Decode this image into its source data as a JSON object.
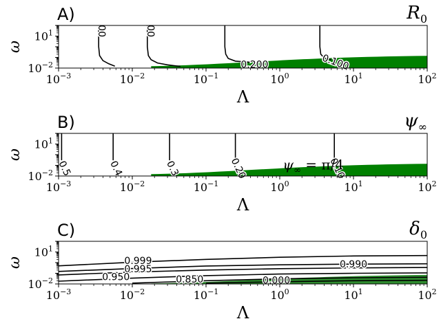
{
  "colors": {
    "fill": "#008000",
    "fill_alt": "#2e8b2e",
    "line": "#000000",
    "axes": "#000000"
  },
  "chart_data": [
    {
      "type": "contour",
      "panel_label": "A)",
      "title": "R",
      "title_sub": "0",
      "xlabel": "Λ",
      "ylabel": "ω",
      "xscale": "log",
      "yscale": "log",
      "xlim": [
        0.001,
        100
      ],
      "ylim": [
        0.01,
        100
      ],
      "x_ticks": [
        {
          "base": "10",
          "exp": "−3",
          "value": 0.001
        },
        {
          "base": "10",
          "exp": "−2",
          "value": 0.01
        },
        {
          "base": "10",
          "exp": "−1",
          "value": 0.1
        },
        {
          "base": "10",
          "exp": "0",
          "value": 1
        },
        {
          "base": "10",
          "exp": "1",
          "value": 10
        },
        {
          "base": "10",
          "exp": "2",
          "value": 100
        }
      ],
      "y_ticks": [
        {
          "base": "10",
          "exp": "−2",
          "value": 0.01
        },
        {
          "base": "10",
          "exp": "1",
          "value": 10
        }
      ],
      "contours": [
        {
          "label": "00",
          "points": [
            [
              0.0035,
              100
            ],
            [
              0.0035,
              1
            ],
            [
              0.0036,
              0.15
            ],
            [
              0.004,
              0.05
            ],
            [
              0.0048,
              0.025
            ],
            [
              0.0058,
              0.015
            ]
          ]
        },
        {
          "label": "00",
          "points": [
            [
              0.016,
              100
            ],
            [
              0.016,
              1
            ],
            [
              0.0165,
              0.15
            ],
            [
              0.018,
              0.06
            ],
            [
              0.022,
              0.03
            ],
            [
              0.03,
              0.02
            ],
            [
              0.045,
              0.014
            ]
          ]
        },
        {
          "label": "0.200",
          "points": [
            [
              0.18,
              100
            ],
            [
              0.18,
              1
            ],
            [
              0.185,
              0.2
            ],
            [
              0.2,
              0.08
            ],
            [
              0.25,
              0.045
            ],
            [
              0.4,
              0.035
            ]
          ]
        },
        {
          "label": "0.100",
          "points": [
            [
              3.5,
              100
            ],
            [
              3.5,
              1
            ],
            [
              3.6,
              0.2
            ],
            [
              4,
              0.09
            ],
            [
              5,
              0.06
            ]
          ]
        }
      ],
      "filled_region": {
        "x_start": 0.018,
        "y_top_at_start": 0.015,
        "y_top_at_end": 0.14
      }
    },
    {
      "type": "contour",
      "panel_label": "B)",
      "title": "ψ",
      "title_sub": "∞",
      "xlabel": "Λ",
      "ylabel": "ω",
      "xscale": "log",
      "yscale": "log",
      "xlim": [
        0.001,
        100
      ],
      "ylim": [
        0.01,
        100
      ],
      "x_ticks": [
        {
          "base": "10",
          "exp": "−3",
          "value": 0.001
        },
        {
          "base": "10",
          "exp": "−2",
          "value": 0.01
        },
        {
          "base": "10",
          "exp": "−1",
          "value": 0.1
        },
        {
          "base": "10",
          "exp": "0",
          "value": 1
        },
        {
          "base": "10",
          "exp": "1",
          "value": 10
        },
        {
          "base": "10",
          "exp": "2",
          "value": 100
        }
      ],
      "y_ticks": [
        {
          "base": "10",
          "exp": "−2",
          "value": 0.01
        },
        {
          "base": "10",
          "exp": "1",
          "value": 10
        }
      ],
      "contours": [
        {
          "label": "0.5",
          "points": [
            [
              0.0011,
              100
            ],
            [
              0.0011,
              0.3
            ]
          ]
        },
        {
          "label": "0.4",
          "points": [
            [
              0.0055,
              100
            ],
            [
              0.0055,
              0.3
            ]
          ]
        },
        {
          "label": "0.3",
          "points": [
            [
              0.032,
              100
            ],
            [
              0.032,
              0.3
            ]
          ]
        },
        {
          "label": "0.20",
          "points": [
            [
              0.25,
              100
            ],
            [
              0.25,
              0.3
            ]
          ]
        },
        {
          "label": "0.10",
          "points": [
            [
              5.5,
              100
            ],
            [
              5.5,
              0.4
            ]
          ]
        }
      ],
      "annotation": {
        "text_pre": "ψ",
        "text_sub": "∞",
        "text_post": " = π/4",
        "x": 1.1,
        "y": 0.04
      },
      "filled_region": {
        "x_start": 0.018,
        "y_top_at_start": 0.015,
        "y_top_at_end": 0.14
      }
    },
    {
      "type": "contour",
      "panel_label": "C)",
      "title": "δ",
      "title_sub": "0",
      "xlabel": "Λ",
      "ylabel": "ω",
      "xscale": "log",
      "yscale": "log",
      "xlim": [
        0.001,
        100
      ],
      "ylim": [
        0.01,
        100
      ],
      "x_ticks": [
        {
          "base": "10",
          "exp": "−3",
          "value": 0.001
        },
        {
          "base": "10",
          "exp": "−2",
          "value": 0.01
        },
        {
          "base": "10",
          "exp": "−1",
          "value": 0.1
        },
        {
          "base": "10",
          "exp": "0",
          "value": 1
        },
        {
          "base": "10",
          "exp": "1",
          "value": 10
        },
        {
          "base": "10",
          "exp": "2",
          "value": 100
        }
      ],
      "y_ticks": [
        {
          "base": "10",
          "exp": "−2",
          "value": 0.01
        },
        {
          "base": "10",
          "exp": "1",
          "value": 10
        }
      ],
      "contours": [
        {
          "label": "0.999",
          "points": [
            [
              0.001,
              0.5
            ],
            [
              0.01,
              1.1
            ],
            [
              0.1,
              2.0
            ],
            [
              1,
              3.2
            ],
            [
              10,
              4.2
            ],
            [
              100,
              4.6
            ]
          ],
          "label_at": [
            0.012,
            1.35
          ]
        },
        {
          "label": "0.990",
          "points": [
            [
              0.001,
              0.15
            ],
            [
              0.01,
              0.28
            ],
            [
              0.1,
              0.48
            ],
            [
              1,
              0.62
            ],
            [
              10,
              0.72
            ],
            [
              100,
              0.78
            ]
          ],
          "label_at": [
            10,
            0.62
          ]
        },
        {
          "label": "0.995",
          "points": [
            [
              0.001,
              0.07
            ],
            [
              0.01,
              0.13
            ],
            [
              0.1,
              0.2
            ],
            [
              1,
              0.27
            ],
            [
              10,
              0.32
            ],
            [
              100,
              0.35
            ]
          ],
          "label_at": [
            0.012,
            0.22
          ]
        },
        {
          "label": "0.950",
          "points": [
            [
              0.001,
              0.018
            ],
            [
              0.01,
              0.035
            ],
            [
              0.1,
              0.06
            ],
            [
              1,
              0.085
            ],
            [
              10,
              0.1
            ],
            [
              100,
              0.11
            ]
          ],
          "label_at": [
            0.006,
            0.04
          ]
        },
        {
          "label": "0.850",
          "points": [
            [
              0.01,
              0.012
            ],
            [
              0.1,
              0.02
            ],
            [
              1,
              0.03
            ],
            [
              10,
              0.038
            ],
            [
              100,
              0.042
            ]
          ],
          "label_at": [
            0.06,
            0.024
          ]
        },
        {
          "label": "0.000",
          "points": [
            [
              0.1,
              0.012
            ],
            [
              1,
              0.016
            ],
            [
              10,
              0.02
            ],
            [
              100,
              0.022
            ]
          ],
          "label_at": [
            0.9,
            0.02
          ]
        }
      ],
      "filled_region": {
        "x_start": 0.018,
        "y_top_at_start": 0.011,
        "y_top_at_end": 0.07,
        "use_alt_color": true
      }
    }
  ]
}
